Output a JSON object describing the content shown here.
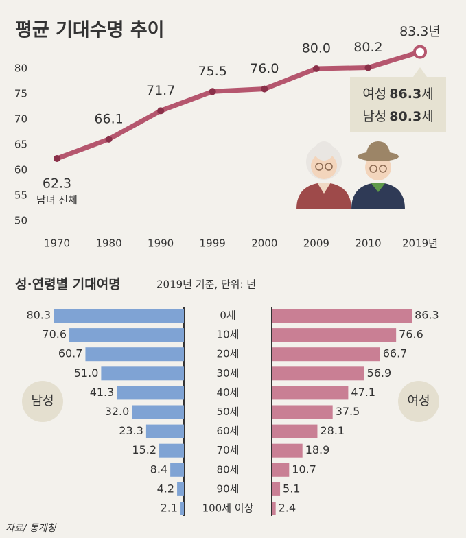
{
  "chart_data": [
    {
      "type": "line",
      "title": "평균 기대수명 추이",
      "categories": [
        "1970",
        "1980",
        "1990",
        "1999",
        "2000",
        "2009",
        "2010",
        "2019년"
      ],
      "values": [
        62.3,
        66.1,
        71.7,
        75.5,
        76.0,
        80.0,
        80.2,
        83.3
      ],
      "value_labels": [
        "62.3",
        "66.1",
        "71.7",
        "75.5",
        "76.0",
        "80.0",
        "80.2",
        "83.3년"
      ],
      "color": "#b5566e",
      "point_color": "#8a3049",
      "ylim": [
        50,
        85
      ],
      "yticks": [
        50,
        55,
        60,
        65,
        70,
        75,
        80
      ],
      "annotation": "남녀 전체",
      "callout": [
        {
          "label": "여성",
          "value": 86.3,
          "unit": "세",
          "color": "#b5566e"
        },
        {
          "label": "남성",
          "value": 80.3,
          "unit": "세",
          "color": "#3d6aa0"
        }
      ]
    },
    {
      "type": "pyramid",
      "title": "성·연령별 기대여명",
      "subtitle": "2019년 기준, 단위: 년",
      "categories": [
        "0세",
        "10세",
        "20세",
        "30세",
        "40세",
        "50세",
        "60세",
        "70세",
        "80세",
        "90세",
        "100세 이상"
      ],
      "series": [
        {
          "name": "남성",
          "color": "#7fa3d4",
          "label_color": "#3d6aa0",
          "values": [
            80.3,
            70.6,
            60.7,
            51.0,
            41.3,
            32.0,
            23.3,
            15.2,
            8.4,
            4.2,
            2.1
          ],
          "value_labels": [
            "80.3",
            "70.6",
            "60.7",
            "51.0",
            "41.3",
            "32.0",
            "23.3",
            "15.2",
            "8.4",
            "4.2",
            "2.1"
          ]
        },
        {
          "name": "여성",
          "color": "#c97f94",
          "label_color": "#8a3049",
          "values": [
            86.3,
            76.6,
            66.7,
            56.9,
            47.1,
            37.5,
            28.1,
            18.9,
            10.7,
            5.1,
            2.4
          ]
        }
      ]
    }
  ],
  "source": "자료/ 통계청"
}
